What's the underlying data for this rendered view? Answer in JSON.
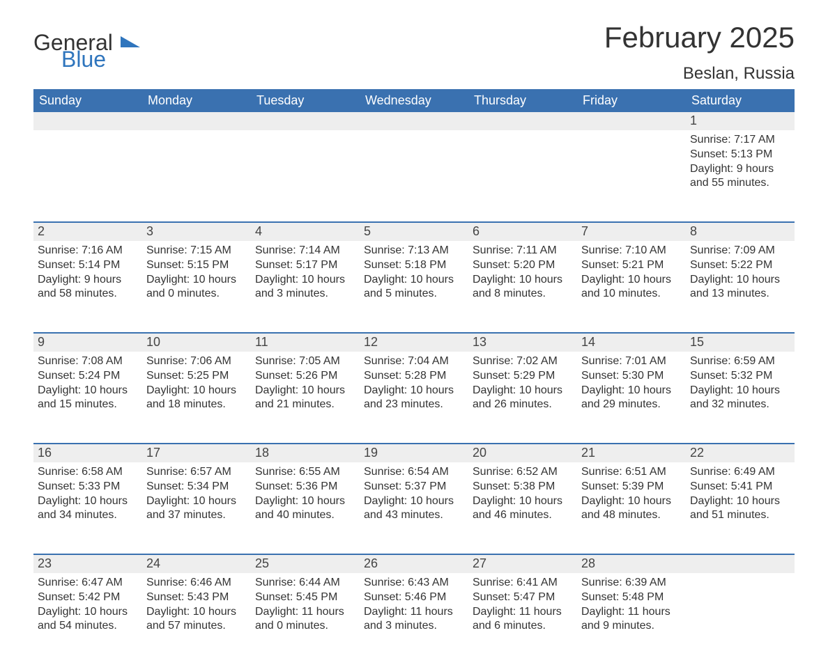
{
  "brand": {
    "part1": "General",
    "part2": "Blue",
    "accent_color": "#2f75bd"
  },
  "title": "February 2025",
  "location": "Beslan, Russia",
  "colors": {
    "header_bg": "#3a71b0",
    "header_text": "#ffffff",
    "row_sep": "#3a71b0",
    "daynum_bg": "#eeeeee",
    "page_bg": "#ffffff",
    "text": "#333333"
  },
  "fonts": {
    "title_size": 42,
    "location_size": 24,
    "th_size": 18,
    "daynum_size": 18,
    "body_size": 16
  },
  "layout": {
    "columns": 7,
    "rows": 5,
    "first_day_index": 6
  },
  "day_headers": [
    "Sunday",
    "Monday",
    "Tuesday",
    "Wednesday",
    "Thursday",
    "Friday",
    "Saturday"
  ],
  "weeks": [
    [
      null,
      null,
      null,
      null,
      null,
      null,
      {
        "n": "1",
        "sunrise": "Sunrise: 7:17 AM",
        "sunset": "Sunset: 5:13 PM",
        "daylight": "Daylight: 9 hours and 55 minutes."
      }
    ],
    [
      {
        "n": "2",
        "sunrise": "Sunrise: 7:16 AM",
        "sunset": "Sunset: 5:14 PM",
        "daylight": "Daylight: 9 hours and 58 minutes."
      },
      {
        "n": "3",
        "sunrise": "Sunrise: 7:15 AM",
        "sunset": "Sunset: 5:15 PM",
        "daylight": "Daylight: 10 hours and 0 minutes."
      },
      {
        "n": "4",
        "sunrise": "Sunrise: 7:14 AM",
        "sunset": "Sunset: 5:17 PM",
        "daylight": "Daylight: 10 hours and 3 minutes."
      },
      {
        "n": "5",
        "sunrise": "Sunrise: 7:13 AM",
        "sunset": "Sunset: 5:18 PM",
        "daylight": "Daylight: 10 hours and 5 minutes."
      },
      {
        "n": "6",
        "sunrise": "Sunrise: 7:11 AM",
        "sunset": "Sunset: 5:20 PM",
        "daylight": "Daylight: 10 hours and 8 minutes."
      },
      {
        "n": "7",
        "sunrise": "Sunrise: 7:10 AM",
        "sunset": "Sunset: 5:21 PM",
        "daylight": "Daylight: 10 hours and 10 minutes."
      },
      {
        "n": "8",
        "sunrise": "Sunrise: 7:09 AM",
        "sunset": "Sunset: 5:22 PM",
        "daylight": "Daylight: 10 hours and 13 minutes."
      }
    ],
    [
      {
        "n": "9",
        "sunrise": "Sunrise: 7:08 AM",
        "sunset": "Sunset: 5:24 PM",
        "daylight": "Daylight: 10 hours and 15 minutes."
      },
      {
        "n": "10",
        "sunrise": "Sunrise: 7:06 AM",
        "sunset": "Sunset: 5:25 PM",
        "daylight": "Daylight: 10 hours and 18 minutes."
      },
      {
        "n": "11",
        "sunrise": "Sunrise: 7:05 AM",
        "sunset": "Sunset: 5:26 PM",
        "daylight": "Daylight: 10 hours and 21 minutes."
      },
      {
        "n": "12",
        "sunrise": "Sunrise: 7:04 AM",
        "sunset": "Sunset: 5:28 PM",
        "daylight": "Daylight: 10 hours and 23 minutes."
      },
      {
        "n": "13",
        "sunrise": "Sunrise: 7:02 AM",
        "sunset": "Sunset: 5:29 PM",
        "daylight": "Daylight: 10 hours and 26 minutes."
      },
      {
        "n": "14",
        "sunrise": "Sunrise: 7:01 AM",
        "sunset": "Sunset: 5:30 PM",
        "daylight": "Daylight: 10 hours and 29 minutes."
      },
      {
        "n": "15",
        "sunrise": "Sunrise: 6:59 AM",
        "sunset": "Sunset: 5:32 PM",
        "daylight": "Daylight: 10 hours and 32 minutes."
      }
    ],
    [
      {
        "n": "16",
        "sunrise": "Sunrise: 6:58 AM",
        "sunset": "Sunset: 5:33 PM",
        "daylight": "Daylight: 10 hours and 34 minutes."
      },
      {
        "n": "17",
        "sunrise": "Sunrise: 6:57 AM",
        "sunset": "Sunset: 5:34 PM",
        "daylight": "Daylight: 10 hours and 37 minutes."
      },
      {
        "n": "18",
        "sunrise": "Sunrise: 6:55 AM",
        "sunset": "Sunset: 5:36 PM",
        "daylight": "Daylight: 10 hours and 40 minutes."
      },
      {
        "n": "19",
        "sunrise": "Sunrise: 6:54 AM",
        "sunset": "Sunset: 5:37 PM",
        "daylight": "Daylight: 10 hours and 43 minutes."
      },
      {
        "n": "20",
        "sunrise": "Sunrise: 6:52 AM",
        "sunset": "Sunset: 5:38 PM",
        "daylight": "Daylight: 10 hours and 46 minutes."
      },
      {
        "n": "21",
        "sunrise": "Sunrise: 6:51 AM",
        "sunset": "Sunset: 5:39 PM",
        "daylight": "Daylight: 10 hours and 48 minutes."
      },
      {
        "n": "22",
        "sunrise": "Sunrise: 6:49 AM",
        "sunset": "Sunset: 5:41 PM",
        "daylight": "Daylight: 10 hours and 51 minutes."
      }
    ],
    [
      {
        "n": "23",
        "sunrise": "Sunrise: 6:47 AM",
        "sunset": "Sunset: 5:42 PM",
        "daylight": "Daylight: 10 hours and 54 minutes."
      },
      {
        "n": "24",
        "sunrise": "Sunrise: 6:46 AM",
        "sunset": "Sunset: 5:43 PM",
        "daylight": "Daylight: 10 hours and 57 minutes."
      },
      {
        "n": "25",
        "sunrise": "Sunrise: 6:44 AM",
        "sunset": "Sunset: 5:45 PM",
        "daylight": "Daylight: 11 hours and 0 minutes."
      },
      {
        "n": "26",
        "sunrise": "Sunrise: 6:43 AM",
        "sunset": "Sunset: 5:46 PM",
        "daylight": "Daylight: 11 hours and 3 minutes."
      },
      {
        "n": "27",
        "sunrise": "Sunrise: 6:41 AM",
        "sunset": "Sunset: 5:47 PM",
        "daylight": "Daylight: 11 hours and 6 minutes."
      },
      {
        "n": "28",
        "sunrise": "Sunrise: 6:39 AM",
        "sunset": "Sunset: 5:48 PM",
        "daylight": "Daylight: 11 hours and 9 minutes."
      },
      null
    ]
  ]
}
